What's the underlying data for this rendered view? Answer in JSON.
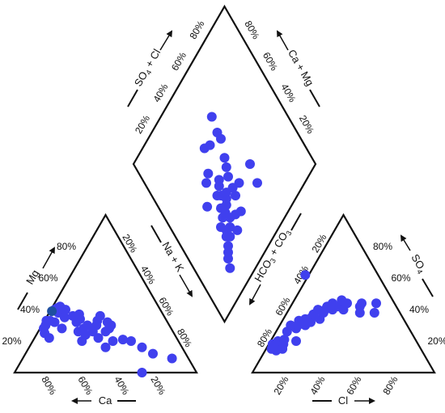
{
  "chart_data": {
    "type": "scatter",
    "subtype": "piper-diagram",
    "point_color": "#4040ee",
    "highlight_color": "#1f4fa0",
    "line_color": "#111111",
    "ticks": [
      "20%",
      "40%",
      "60%",
      "80%"
    ],
    "cation_triangle": {
      "axis_labels": {
        "ca": "Ca",
        "mg": "Mg",
        "na_k": "Na + K"
      },
      "points": [
        {
          "ca": 70,
          "mg": 28,
          "naK": 2
        },
        {
          "ca": 71,
          "mg": 25,
          "naK": 4
        },
        {
          "ca": 70,
          "mg": 22,
          "naK": 8
        },
        {
          "ca": 68,
          "mg": 30,
          "naK": 2
        },
        {
          "ca": 66,
          "mg": 33,
          "naK": 1
        },
        {
          "ca": 64,
          "mg": 33,
          "naK": 3
        },
        {
          "ca": 62,
          "mg": 32,
          "naK": 6
        },
        {
          "ca": 60,
          "mg": 28,
          "naK": 12
        },
        {
          "ca": 58,
          "mg": 40,
          "naK": 2
        },
        {
          "ca": 57,
          "mg": 38,
          "naK": 5
        },
        {
          "ca": 56,
          "mg": 41,
          "naK": 3
        },
        {
          "ca": 55,
          "mg": 35,
          "naK": 10
        },
        {
          "ca": 54,
          "mg": 42,
          "naK": 4
        },
        {
          "ca": 52,
          "mg": 40,
          "naK": 8
        },
        {
          "ca": 52,
          "mg": 26,
          "naK": 22
        },
        {
          "ca": 53,
          "mg": 20,
          "naK": 27
        },
        {
          "ca": 50,
          "mg": 36,
          "naK": 14
        },
        {
          "ca": 50,
          "mg": 32,
          "naK": 18
        },
        {
          "ca": 49,
          "mg": 24,
          "naK": 27
        },
        {
          "ca": 48,
          "mg": 28,
          "naK": 24
        },
        {
          "ca": 47,
          "mg": 34,
          "naK": 19
        },
        {
          "ca": 46,
          "mg": 37,
          "naK": 17
        },
        {
          "ca": 45,
          "mg": 30,
          "naK": 25
        },
        {
          "ca": 44,
          "mg": 26,
          "naK": 30
        },
        {
          "ca": 43,
          "mg": 22,
          "naK": 35
        },
        {
          "ca": 42,
          "mg": 16,
          "naK": 42
        },
        {
          "ca": 40,
          "mg": 30,
          "naK": 30
        },
        {
          "ca": 38,
          "mg": 33,
          "naK": 29
        },
        {
          "ca": 37,
          "mg": 26,
          "naK": 37
        },
        {
          "ca": 36,
          "mg": 20,
          "naK": 44
        },
        {
          "ca": 35,
          "mg": 36,
          "naK": 29
        },
        {
          "ca": 34,
          "mg": 28,
          "naK": 38
        },
        {
          "ca": 33,
          "mg": 32,
          "naK": 35
        },
        {
          "ca": 32,
          "mg": 30,
          "naK": 38
        },
        {
          "ca": 30,
          "mg": 21,
          "naK": 49
        },
        {
          "ca": 26,
          "mg": 20,
          "naK": 54
        },
        {
          "ca": 22,
          "mg": 16,
          "naK": 62
        },
        {
          "ca": 18,
          "mg": 12,
          "naK": 70
        },
        {
          "ca": 9,
          "mg": 9,
          "naK": 82
        },
        {
          "ca": 30,
          "mg": 0,
          "naK": 70
        }
      ],
      "highlighted_point": {
        "ca": 60,
        "mg": 39,
        "naK": 1
      }
    },
    "anion_triangle": {
      "axis_labels": {
        "hco3_co3": "HCO3 + CO3",
        "so4": "SO4",
        "cl": "Cl"
      },
      "points": [
        {
          "hco3": 82,
          "so4": 15,
          "cl": 3
        },
        {
          "hco3": 80,
          "so4": 14,
          "cl": 6
        },
        {
          "hco3": 80,
          "so4": 18,
          "cl": 2
        },
        {
          "hco3": 78,
          "so4": 16,
          "cl": 6
        },
        {
          "hco3": 76,
          "so4": 15,
          "cl": 9
        },
        {
          "hco3": 76,
          "so4": 20,
          "cl": 4
        },
        {
          "hco3": 74,
          "so4": 18,
          "cl": 8
        },
        {
          "hco3": 72,
          "so4": 21,
          "cl": 7
        },
        {
          "hco3": 68,
          "so4": 26,
          "cl": 6
        },
        {
          "hco3": 66,
          "so4": 20,
          "cl": 14
        },
        {
          "hco3": 64,
          "so4": 30,
          "cl": 6
        },
        {
          "hco3": 62,
          "so4": 28,
          "cl": 10
        },
        {
          "hco3": 60,
          "so4": 30,
          "cl": 10
        },
        {
          "hco3": 58,
          "so4": 33,
          "cl": 9
        },
        {
          "hco3": 56,
          "so4": 30,
          "cl": 14
        },
        {
          "hco3": 54,
          "so4": 34,
          "cl": 12
        },
        {
          "hco3": 52,
          "so4": 32,
          "cl": 16
        },
        {
          "hco3": 50,
          "so4": 35,
          "cl": 15
        },
        {
          "hco3": 48,
          "so4": 37,
          "cl": 15
        },
        {
          "hco3": 46,
          "so4": 34,
          "cl": 20
        },
        {
          "hco3": 44,
          "so4": 40,
          "cl": 16
        },
        {
          "hco3": 42,
          "so4": 38,
          "cl": 20
        },
        {
          "hco3": 40,
          "so4": 40,
          "cl": 20
        },
        {
          "hco3": 38,
          "so4": 42,
          "cl": 20
        },
        {
          "hco3": 36,
          "so4": 40,
          "cl": 24
        },
        {
          "hco3": 34,
          "so4": 44,
          "cl": 22
        },
        {
          "hco3": 32,
          "so4": 42,
          "cl": 26
        },
        {
          "hco3": 30,
          "so4": 40,
          "cl": 30
        },
        {
          "hco3": 28,
          "so4": 46,
          "cl": 26
        },
        {
          "hco3": 26,
          "so4": 44,
          "cl": 30
        },
        {
          "hco3": 22,
          "so4": 38,
          "cl": 40
        },
        {
          "hco3": 20,
          "so4": 42,
          "cl": 38
        },
        {
          "hco3": 18,
          "so4": 44,
          "cl": 38
        },
        {
          "hco3": 14,
          "so4": 38,
          "cl": 48
        },
        {
          "hco3": 10,
          "so4": 44,
          "cl": 46
        },
        {
          "hco3": 40,
          "so4": 62,
          "cl": -2
        }
      ]
    },
    "diamond": {
      "axis_labels": {
        "so4_cl": "SO4 + Cl",
        "ca_mg": "Ca + Mg"
      },
      "points": [
        {
          "so4cl": 20,
          "camg": 86
        },
        {
          "so4cl": 22,
          "camg": 82
        },
        {
          "so4cl": 24,
          "camg": 80
        },
        {
          "so4cl": 26,
          "camg": 78
        },
        {
          "so4cl": 28,
          "camg": 74
        },
        {
          "so4cl": 28,
          "camg": 68
        },
        {
          "so4cl": 30,
          "camg": 76
        },
        {
          "so4cl": 30,
          "camg": 72
        },
        {
          "so4cl": 32,
          "camg": 66
        },
        {
          "so4cl": 33,
          "camg": 73
        },
        {
          "so4cl": 34,
          "camg": 62
        },
        {
          "so4cl": 35,
          "camg": 66
        },
        {
          "so4cl": 36,
          "camg": 78
        },
        {
          "so4cl": 36,
          "camg": 70
        },
        {
          "so4cl": 38,
          "camg": 64
        },
        {
          "so4cl": 38,
          "camg": 58
        },
        {
          "so4cl": 40,
          "camg": 72
        },
        {
          "so4cl": 40,
          "camg": 62
        },
        {
          "so4cl": 42,
          "camg": 60
        },
        {
          "so4cl": 42,
          "camg": 52
        },
        {
          "so4cl": 44,
          "camg": 74
        },
        {
          "so4cl": 46,
          "camg": 66
        },
        {
          "so4cl": 47,
          "camg": 62
        },
        {
          "so4cl": 48,
          "camg": 56
        },
        {
          "so4cl": 50,
          "camg": 52
        },
        {
          "so4cl": 52,
          "camg": 64
        },
        {
          "so4cl": 52,
          "camg": 48
        },
        {
          "so4cl": 40,
          "camg": 54
        },
        {
          "so4cl": 36,
          "camg": 56
        },
        {
          "so4cl": 27,
          "camg": 54
        },
        {
          "so4cl": 48,
          "camg": 36
        },
        {
          "so4cl": 58,
          "camg": 28
        },
        {
          "so4cl": 38,
          "camg": 44
        },
        {
          "so4cl": 62,
          "camg": 74
        },
        {
          "so4cl": 64,
          "camg": 64
        },
        {
          "so4cl": 44,
          "camg": 34
        },
        {
          "so4cl": 56,
          "camg": 36
        },
        {
          "so4cl": 34,
          "camg": 46
        },
        {
          "so4cl": 56,
          "camg": 40
        }
      ]
    }
  }
}
